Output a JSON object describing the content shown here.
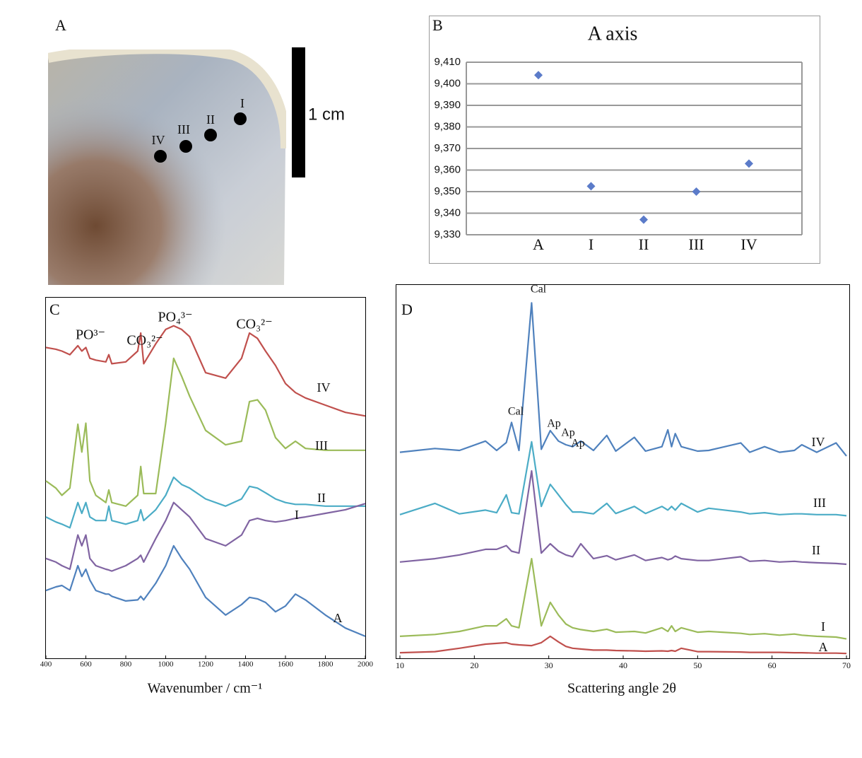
{
  "photo_panel": {
    "label": "A",
    "scale_bar": "1 cm",
    "points": [
      "I",
      "II",
      "III",
      "IV"
    ]
  },
  "chart_data": [
    {
      "type": "scatter",
      "panel_label": "B",
      "title": "A axis",
      "categories": [
        "A",
        "I",
        "II",
        "III",
        "IV"
      ],
      "values": [
        9404,
        9352.5,
        9337,
        9350,
        9363
      ],
      "color": "#5b7bc9",
      "ylim": [
        9330,
        9410
      ],
      "yticks": [
        {
          "value": 9330,
          "label": "9,330"
        },
        {
          "value": 9340,
          "label": "9,340"
        },
        {
          "value": 9350,
          "label": "9,350"
        },
        {
          "value": 9360,
          "label": "9,360"
        },
        {
          "value": 9370,
          "label": "9,370"
        },
        {
          "value": 9380,
          "label": "9,380"
        },
        {
          "value": 9390,
          "label": "9,390"
        },
        {
          "value": 9400,
          "label": "9,400"
        },
        {
          "value": 9410,
          "label": "9,410"
        }
      ],
      "grid": true
    },
    {
      "type": "line",
      "panel_label": "C",
      "x_label": "Wavenumber / cm⁻¹",
      "annotations": [
        "PO³⁻",
        "CO₃²⁻",
        "PO₄³⁻",
        "CO₃²⁻"
      ],
      "xlim": [
        400,
        2000
      ],
      "xticks": [
        400,
        600,
        800,
        1000,
        1200,
        1400,
        1600,
        1800,
        2000
      ],
      "ylim": [
        0,
        100
      ],
      "x": [
        400,
        450,
        480,
        520,
        560,
        580,
        600,
        620,
        650,
        700,
        715,
        730,
        800,
        860,
        875,
        890,
        950,
        1000,
        1040,
        1080,
        1120,
        1200,
        1300,
        1380,
        1420,
        1460,
        1500,
        1550,
        1600,
        1650,
        1700,
        1800,
        1900,
        2000
      ],
      "series": [
        {
          "name": "IV",
          "color": "#c0504d",
          "values": [
            86,
            85.5,
            85,
            84,
            86.5,
            85,
            86,
            83,
            82.5,
            82,
            84,
            81.5,
            82,
            85,
            90,
            81.5,
            87,
            91,
            92,
            91,
            89,
            79,
            77.5,
            83,
            90,
            88.5,
            85,
            81,
            76,
            73.5,
            72,
            70,
            68,
            67
          ]
        },
        {
          "name": "III",
          "color": "#9bbb59",
          "values": [
            49,
            47,
            45,
            47,
            64.7,
            57,
            65,
            49,
            45,
            43,
            46.5,
            43,
            42,
            45,
            53,
            45.5,
            45.5,
            65,
            83,
            78,
            72.5,
            63,
            59,
            60,
            71,
            71.5,
            68.6,
            61,
            58,
            60,
            58,
            57.5,
            57.5,
            57.5
          ]
        },
        {
          "name": "II",
          "color": "#4bacc6",
          "values": [
            39,
            37.6,
            37,
            36,
            43,
            40,
            43,
            39,
            38,
            38,
            42,
            38,
            37,
            38,
            41,
            38,
            41,
            45,
            50,
            48,
            47,
            44,
            42,
            44,
            47.5,
            47,
            45.7,
            44,
            43,
            42.5,
            42.5,
            42,
            42,
            42
          ]
        },
        {
          "name": "I",
          "color": "#8064a2",
          "values": [
            27.5,
            26.5,
            25.5,
            24.5,
            34,
            31,
            34,
            27.5,
            25.5,
            24.5,
            24.3,
            24,
            25.5,
            27.5,
            28.4,
            26.5,
            33,
            38,
            43,
            41,
            39,
            33,
            31,
            34,
            38,
            38.6,
            38,
            37.6,
            38,
            38.6,
            39,
            40,
            41,
            42.7
          ]
        },
        {
          "name": "A",
          "color": "#4f81bd",
          "values": [
            18.6,
            19.6,
            20,
            18.6,
            25.5,
            22.5,
            24.5,
            21.5,
            18.6,
            17.6,
            17.6,
            17,
            15.7,
            16,
            17,
            16,
            20.6,
            25.5,
            31,
            27.5,
            24.5,
            16.7,
            11.8,
            14.7,
            16.7,
            16.3,
            15.3,
            12.7,
            14.3,
            17.6,
            16,
            11.8,
            8.2,
            5.9
          ]
        }
      ]
    },
    {
      "type": "line",
      "panel_label": "D",
      "x_label": "Scattering angle 2θ",
      "annotations": [
        "Cal",
        "Cal",
        "Ap",
        "Ap",
        "Ap"
      ],
      "xlim": [
        10,
        70
      ],
      "xticks": [
        10,
        20,
        30,
        40,
        50,
        60,
        70
      ],
      "ylim": [
        0,
        100
      ],
      "x": [
        10,
        14.7,
        18,
        21.5,
        23,
        24.3,
        25,
        26,
        27.7,
        29,
        30.2,
        31.3,
        32.3,
        33.2,
        34.3,
        36,
        37.8,
        39,
        41.5,
        43,
        45.2,
        46,
        46.5,
        47,
        47.8,
        50,
        51.5,
        55.8,
        57,
        59,
        61,
        63,
        64,
        66,
        68.6,
        70
      ],
      "series": [
        {
          "name": "IV",
          "color": "#4f81bd",
          "values": [
            55,
            56,
            55.5,
            58,
            55.5,
            57.6,
            63,
            55.5,
            95,
            55.8,
            60.8,
            58,
            57,
            56.5,
            58,
            55.5,
            59.5,
            55.3,
            59,
            55.3,
            56.5,
            61,
            56.5,
            60,
            56.5,
            55.3,
            55.5,
            57.5,
            55,
            56.5,
            55,
            55.5,
            57,
            55,
            57.5,
            54
          ]
        },
        {
          "name": "III",
          "color": "#4bacc6",
          "values": [
            38.3,
            41.3,
            38.5,
            39.5,
            38.8,
            43.6,
            38.8,
            38.5,
            57.8,
            40.5,
            46.4,
            43.6,
            41,
            39,
            39,
            38.5,
            41.3,
            38.6,
            40.5,
            38.6,
            40.5,
            39.5,
            40.5,
            39.5,
            41.3,
            39,
            40,
            39,
            38.5,
            38.8,
            38.3,
            38.5,
            38.5,
            38.3,
            38.3,
            38
          ]
        },
        {
          "name": "II",
          "color": "#8064a2",
          "values": [
            25.6,
            26.5,
            27.5,
            29,
            29,
            30,
            28.5,
            28,
            50,
            28,
            30.5,
            28.5,
            27.5,
            27,
            30.5,
            26.5,
            27.3,
            26.2,
            27.5,
            26,
            26.8,
            26.2,
            26.5,
            27.2,
            26.5,
            26,
            26,
            27,
            25.8,
            26,
            25.6,
            25.8,
            25.6,
            25.4,
            25.2,
            25
          ]
        },
        {
          "name": "I",
          "color": "#9bbb59",
          "values": [
            5.7,
            6.2,
            7,
            8.5,
            8.5,
            10.4,
            8.5,
            8,
            26.5,
            8.5,
            14.8,
            11.4,
            9,
            8,
            7.5,
            7,
            7.6,
            6.8,
            7,
            6.6,
            8,
            7,
            8.5,
            7,
            8,
            6.8,
            7,
            6.5,
            6.2,
            6.4,
            6,
            6.3,
            6,
            5.7,
            5.5,
            5
          ]
        },
        {
          "name": "A",
          "color": "#c0504d",
          "values": [
            1.3,
            1.6,
            2.5,
            3.6,
            3.8,
            4,
            3.6,
            3.4,
            3.2,
            4,
            5.7,
            4.2,
            3,
            2.5,
            2.3,
            2,
            2,
            1.9,
            1.8,
            1.7,
            1.8,
            1.7,
            1.9,
            1.7,
            2.5,
            1.6,
            1.6,
            1.5,
            1.4,
            1.4,
            1.4,
            1.3,
            1.3,
            1.2,
            1.2,
            1.1
          ]
        }
      ]
    }
  ]
}
